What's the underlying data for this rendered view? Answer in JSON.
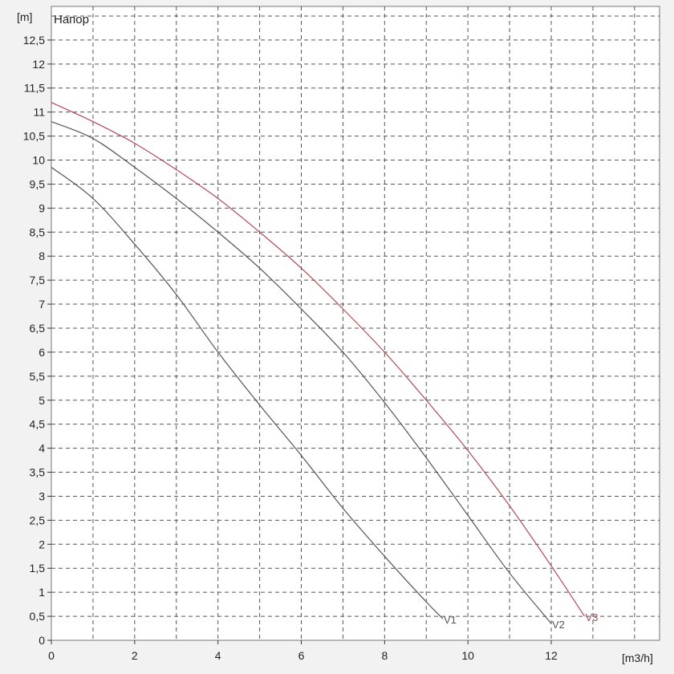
{
  "chart_data": {
    "type": "line",
    "title": "Напор",
    "xlabel": "[m3/h]",
    "ylabel": "[m]",
    "xlim": [
      0,
      14.6
    ],
    "ylim": [
      0,
      13.2
    ],
    "x_ticks": [
      0,
      2,
      4,
      6,
      8,
      10,
      12
    ],
    "x_tick_labels": [
      "0",
      "2",
      "4",
      "6",
      "8",
      "10",
      "12"
    ],
    "y_ticks": [
      0,
      0.5,
      1,
      1.5,
      2,
      2.5,
      3,
      3.5,
      4,
      4.5,
      5,
      5.5,
      6,
      6.5,
      7,
      7.5,
      8,
      8.5,
      9,
      9.5,
      10,
      10.5,
      11,
      11.5,
      12,
      12.5
    ],
    "y_tick_labels": [
      "0",
      "0,5",
      "1",
      "1,5",
      "2",
      "2,5",
      "3",
      "3,5",
      "4",
      "4,5",
      "5",
      "5,5",
      "6",
      "6,5",
      "7",
      "7,5",
      "8",
      "8,5",
      "9",
      "9,5",
      "10",
      "10,5",
      "11",
      "11,5",
      "12",
      "12,5"
    ],
    "x_grid_lines": [
      1,
      2,
      3,
      4,
      5,
      6,
      7,
      8,
      9,
      10,
      11,
      12,
      13,
      14
    ],
    "y_grid_lines": [
      0.5,
      1,
      1.5,
      2,
      2.5,
      3,
      3.5,
      4,
      4.5,
      5,
      5.5,
      6,
      6.5,
      7,
      7.5,
      8,
      8.5,
      9,
      9.5,
      10,
      10.5,
      11,
      11.5,
      12,
      12.5,
      13
    ],
    "grid": true,
    "legend": "none",
    "series": [
      {
        "name": "V1",
        "color": "#555555",
        "x": [
          0,
          1,
          2,
          3,
          4,
          5,
          6,
          7,
          8,
          9,
          9.4
        ],
        "y": [
          9.85,
          9.2,
          8.25,
          7.2,
          6.0,
          4.9,
          3.85,
          2.75,
          1.75,
          0.8,
          0.45
        ]
      },
      {
        "name": "V2",
        "color": "#555555",
        "x": [
          0,
          1,
          2,
          3,
          4,
          5,
          6,
          7,
          8,
          9,
          10,
          11,
          12
        ],
        "y": [
          10.8,
          10.45,
          9.85,
          9.2,
          8.5,
          7.75,
          6.9,
          6.0,
          4.95,
          3.8,
          2.6,
          1.4,
          0.35
        ]
      },
      {
        "name": "V3",
        "color": "#b04a5a",
        "x": [
          0,
          1,
          2,
          3,
          4,
          5,
          6,
          7,
          8,
          9,
          10,
          11,
          12,
          12.8
        ],
        "y": [
          11.2,
          10.8,
          10.35,
          9.8,
          9.2,
          8.5,
          7.75,
          6.9,
          6.0,
          5.0,
          3.95,
          2.8,
          1.55,
          0.5
        ]
      }
    ]
  }
}
